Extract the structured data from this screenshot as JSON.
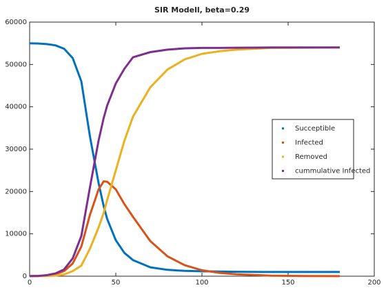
{
  "chart_data": {
    "type": "line",
    "title": "SIR Modell, beta=0.29",
    "x": [
      0,
      5,
      10,
      15,
      20,
      25,
      30,
      35,
      40,
      43,
      45,
      50,
      55,
      60,
      70,
      80,
      90,
      100,
      110,
      120,
      140,
      160,
      180
    ],
    "series": [
      {
        "name": "Succeptible",
        "color": "#0072bd",
        "values": [
          55000,
          54950,
          54800,
          54500,
          53700,
          51500,
          46000,
          33000,
          22000,
          16500,
          13500,
          8500,
          5500,
          3800,
          2100,
          1500,
          1250,
          1150,
          1100,
          1050,
          1000,
          1000,
          1000
        ]
      },
      {
        "name": "Infected",
        "color": "#d95319",
        "values": [
          10,
          60,
          200,
          500,
          1200,
          3000,
          7000,
          14500,
          20500,
          22400,
          22300,
          20500,
          17000,
          14000,
          8300,
          4700,
          2600,
          1400,
          800,
          450,
          130,
          40,
          10
        ]
      },
      {
        "name": "Removed",
        "color": "#edb120",
        "values": [
          0,
          10,
          50,
          150,
          400,
          1200,
          2500,
          6500,
          11500,
          15000,
          18000,
          25000,
          32000,
          37700,
          44600,
          48800,
          51200,
          52500,
          53100,
          53500,
          53900,
          53950,
          54000
        ]
      },
      {
        "name": "cummulative Infected",
        "color": "#7e2f8e",
        "values": [
          10,
          70,
          250,
          650,
          1600,
          4200,
          9500,
          21000,
          32000,
          37400,
          40300,
          45500,
          49000,
          51700,
          52900,
          53500,
          53800,
          53900,
          53900,
          53950,
          54000,
          54000,
          54000
        ]
      }
    ],
    "xlim": [
      0,
      200
    ],
    "xticks": [
      0,
      50,
      100,
      150,
      200
    ],
    "ylim": [
      0,
      60000
    ],
    "yticks": [
      0,
      10000,
      20000,
      30000,
      40000,
      50000,
      60000
    ],
    "legend": "east"
  }
}
